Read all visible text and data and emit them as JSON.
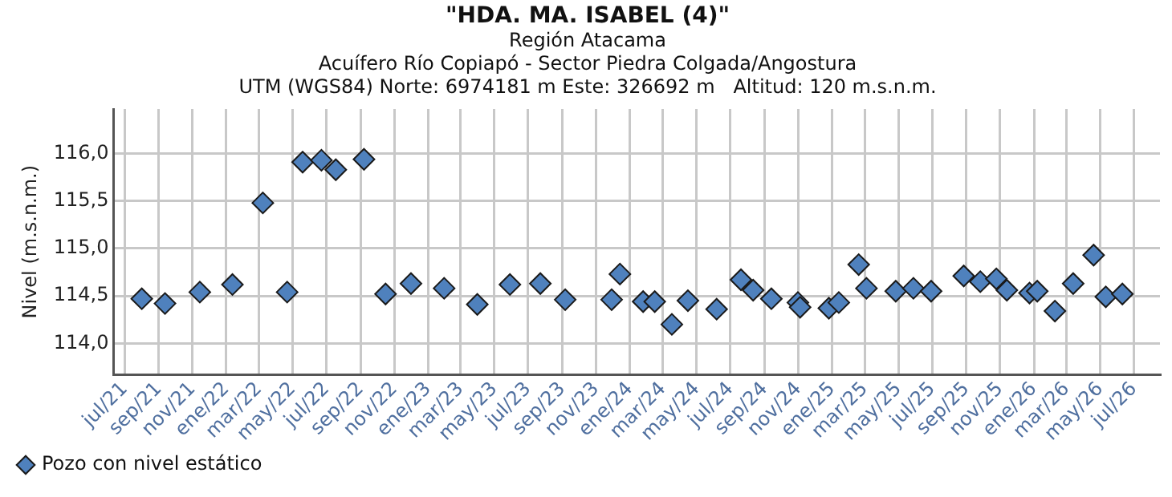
{
  "chart_data": {
    "type": "scatter",
    "title": "\"HDA. MA. ISABEL (4)\"",
    "subtitle": "Región Atacama\nAcuífero Río Copiapó - Sector Piedra Colgada/Angostura\nUTM (WGS84) Norte: 6974181 m Este: 326692 m   Altitud: 120 m.s.n.m.",
    "ylabel": "Nivel (m.s.n.m.)",
    "marker": "diamond",
    "grid": true,
    "legend": "bottom left",
    "xlim": [
      "2021-06-11",
      "2026-08-17"
    ],
    "ylim": [
      113.67,
      116.47
    ],
    "xticks": [
      {
        "value": "2021-07",
        "label": "jul/21"
      },
      {
        "value": "2021-09",
        "label": "sep/21"
      },
      {
        "value": "2021-11",
        "label": "nov/21"
      },
      {
        "value": "2022-01",
        "label": "ene/22"
      },
      {
        "value": "2022-03",
        "label": "mar/22"
      },
      {
        "value": "2022-05",
        "label": "may/22"
      },
      {
        "value": "2022-07",
        "label": "jul/22"
      },
      {
        "value": "2022-09",
        "label": "sep/22"
      },
      {
        "value": "2022-11",
        "label": "nov/22"
      },
      {
        "value": "2023-01",
        "label": "ene/23"
      },
      {
        "value": "2023-03",
        "label": "mar/23"
      },
      {
        "value": "2023-05",
        "label": "may/23"
      },
      {
        "value": "2023-07",
        "label": "jul/23"
      },
      {
        "value": "2023-09",
        "label": "sep/23"
      },
      {
        "value": "2023-11",
        "label": "nov/23"
      },
      {
        "value": "2024-01",
        "label": "ene/24"
      },
      {
        "value": "2024-03",
        "label": "mar/24"
      },
      {
        "value": "2024-05",
        "label": "may/24"
      },
      {
        "value": "2024-07",
        "label": "jul/24"
      },
      {
        "value": "2024-09",
        "label": "sep/24"
      },
      {
        "value": "2024-11",
        "label": "nov/24"
      },
      {
        "value": "2025-01",
        "label": "ene/25"
      },
      {
        "value": "2025-03",
        "label": "mar/25"
      },
      {
        "value": "2025-05",
        "label": "may/25"
      },
      {
        "value": "2025-07",
        "label": "jul/25"
      },
      {
        "value": "2025-09",
        "label": "sep/25"
      },
      {
        "value": "2025-11",
        "label": "nov/25"
      },
      {
        "value": "2026-01",
        "label": "ene/26"
      },
      {
        "value": "2026-03",
        "label": "mar/26"
      },
      {
        "value": "2026-05",
        "label": "may/26"
      },
      {
        "value": "2026-07",
        "label": "jul/26"
      }
    ],
    "yticks": [
      {
        "value": 114,
        "label": "114,0"
      },
      {
        "value": 114.5,
        "label": "114,5"
      },
      {
        "value": 115,
        "label": "115,0"
      },
      {
        "value": 115.5,
        "label": "115,5"
      },
      {
        "value": 116,
        "label": "116,0"
      }
    ],
    "series": [
      {
        "name": "Pozo con nivel estático",
        "color": "#4f81bd",
        "x": [
          "2021-08-01",
          "2021-09-12",
          "2021-11-14",
          "2022-01-12",
          "2022-03-08",
          "2022-04-21",
          "2022-05-19",
          "2022-06-22",
          "2022-07-18",
          "2022-09-07",
          "2022-10-16",
          "2022-12-01",
          "2023-01-30",
          "2023-03-31",
          "2023-05-29",
          "2023-07-23",
          "2023-09-06",
          "2023-11-29",
          "2023-12-14",
          "2024-01-25",
          "2024-02-15",
          "2024-03-17",
          "2024-04-15",
          "2024-06-06",
          "2024-07-20",
          "2024-08-11",
          "2024-09-13",
          "2024-10-31",
          "2024-11-04",
          "2024-12-26",
          "2025-01-13",
          "2025-02-18",
          "2025-03-04",
          "2025-04-26",
          "2025-05-28",
          "2025-06-29",
          "2025-08-27",
          "2025-09-26",
          "2025-10-25",
          "2025-11-13",
          "2025-12-24",
          "2026-01-07",
          "2026-02-08",
          "2026-03-13",
          "2026-04-19",
          "2026-05-11",
          "2026-06-10"
        ],
        "values": [
          114.47,
          114.42,
          114.54,
          114.62,
          115.48,
          114.54,
          115.91,
          115.93,
          115.83,
          115.94,
          114.52,
          114.63,
          114.58,
          114.41,
          114.62,
          114.63,
          114.46,
          114.46,
          114.73,
          114.44,
          114.44,
          114.2,
          114.45,
          114.36,
          114.67,
          114.56,
          114.47,
          114.43,
          114.38,
          114.37,
          114.43,
          114.83,
          114.58,
          114.55,
          114.58,
          114.55,
          114.71,
          114.65,
          114.68,
          114.56,
          114.53,
          114.55,
          114.34,
          114.63,
          114.93,
          114.49,
          114.52
        ]
      }
    ]
  }
}
